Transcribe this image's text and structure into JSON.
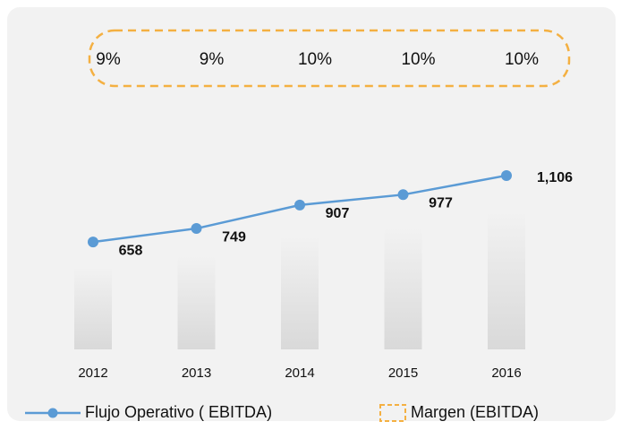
{
  "chart_data": {
    "type": "line",
    "categories": [
      "2012",
      "2013",
      "2014",
      "2015",
      "2016"
    ],
    "series": [
      {
        "name": "Flujo Operativo ( EBITDA)",
        "color": "#5b9bd5",
        "values": [
          658,
          749,
          907,
          977,
          1106
        ],
        "value_labels": [
          "658",
          "749",
          "907",
          "977",
          "1,106"
        ]
      },
      {
        "name": "Margen (EBITDA)",
        "color": "#f4b042",
        "values": [
          9,
          9,
          10,
          10,
          10
        ],
        "value_labels": [
          "9%",
          "9%",
          "10%",
          "10%",
          "10%"
        ]
      }
    ],
    "ylim": [
      0,
      2000
    ]
  }
}
